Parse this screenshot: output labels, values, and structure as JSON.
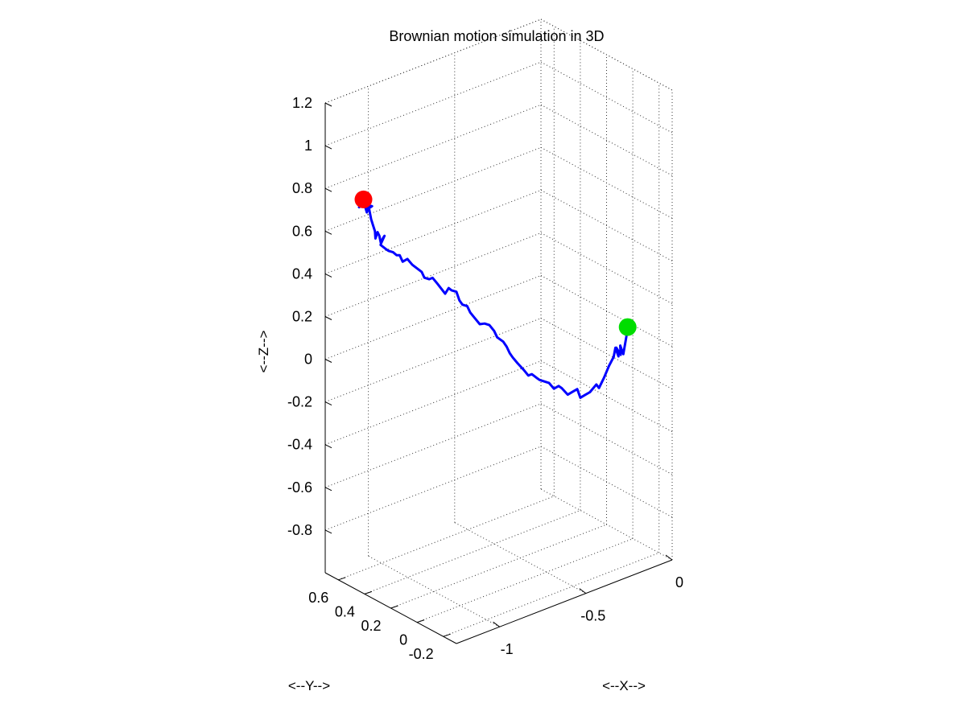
{
  "chart_data": {
    "type": "line3d",
    "title": "Brownian motion simulation in 3D",
    "xlabel": "<--X-->",
    "ylabel": "<--Y-->",
    "zlabel": "<--Z-->",
    "xlim": [
      -1.25,
      0
    ],
    "ylim": [
      -0.3,
      0.7
    ],
    "zlim": [
      -1.0,
      1.2
    ],
    "grid": true,
    "x_ticks": [
      {
        "value": -1,
        "label": "-1"
      },
      {
        "value": -0.5,
        "label": "-0.5"
      },
      {
        "value": 0,
        "label": "0"
      }
    ],
    "y_ticks": [
      {
        "value": -0.2,
        "label": "-0.2"
      },
      {
        "value": 0,
        "label": "0"
      },
      {
        "value": 0.2,
        "label": "0.2"
      },
      {
        "value": 0.4,
        "label": "0.4"
      },
      {
        "value": 0.6,
        "label": "0.6"
      }
    ],
    "z_ticks": [
      {
        "value": -0.8,
        "label": "-0.8"
      },
      {
        "value": -0.6,
        "label": "-0.6"
      },
      {
        "value": -0.4,
        "label": "-0.4"
      },
      {
        "value": -0.2,
        "label": "-0.2"
      },
      {
        "value": 0,
        "label": "0"
      },
      {
        "value": 0.2,
        "label": "0.2"
      },
      {
        "value": 0.4,
        "label": "0.4"
      },
      {
        "value": 0.6,
        "label": "0.6"
      },
      {
        "value": 0.8,
        "label": "0.8"
      },
      {
        "value": 1,
        "label": "1"
      },
      {
        "value": 1.2,
        "label": "1.2"
      }
    ],
    "path_color": "#0000ff",
    "start_marker_color": "#00dd00",
    "end_marker_color": "#ff0000",
    "path": {
      "x": [
        -0.03,
        -0.03,
        -0.04,
        -0.05,
        -0.04,
        -0.05,
        -0.03,
        -0.04,
        -0.05,
        -0.07,
        -0.09,
        -0.12,
        -0.12,
        -0.15,
        -0.17,
        -0.19,
        -0.2,
        -0.22,
        -0.24,
        -0.26,
        -0.27,
        -0.29,
        -0.31,
        -0.33,
        -0.35,
        -0.36,
        -0.38,
        -0.4,
        -0.42,
        -0.44,
        -0.46,
        -0.47,
        -0.48,
        -0.5,
        -0.52,
        -0.53,
        -0.55,
        -0.57,
        -0.59,
        -0.61,
        -0.63,
        -0.64,
        -0.66,
        -0.67,
        -0.68,
        -0.7,
        -0.71,
        -0.73,
        -0.76,
        -0.78,
        -0.8,
        -0.82,
        -0.82,
        -0.84,
        -0.86,
        -0.88,
        -0.9,
        -0.91,
        -0.92,
        -0.94,
        -0.96,
        -0.97,
        -0.99,
        -0.97,
        -0.96,
        -0.98,
        -0.99,
        -1.0,
        -1.02,
        -1.03,
        -1.05,
        -1.06,
        -1.08,
        -1.07,
        -1.09,
        -1.1,
        -1.11,
        -1.13,
        -1.14,
        -1.16,
        -1.14,
        -1.16,
        -1.17,
        -1.15
      ],
      "y": [
        0.0,
        0.01,
        0.02,
        0.03,
        0.04,
        0.06,
        0.07,
        0.08,
        0.08,
        0.09,
        0.1,
        0.1,
        0.12,
        0.13,
        0.14,
        0.15,
        0.16,
        0.17,
        0.18,
        0.2,
        0.21,
        0.22,
        0.23,
        0.24,
        0.25,
        0.26,
        0.27,
        0.27,
        0.28,
        0.3,
        0.31,
        0.32,
        0.33,
        0.33,
        0.35,
        0.36,
        0.37,
        0.38,
        0.39,
        0.4,
        0.41,
        0.42,
        0.43,
        0.44,
        0.45,
        0.46,
        0.47,
        0.47,
        0.49,
        0.5,
        0.5,
        0.51,
        0.53,
        0.54,
        0.55,
        0.56,
        0.57,
        0.58,
        0.59,
        0.59,
        0.6,
        0.61,
        0.62,
        0.63,
        0.63,
        0.63,
        0.63,
        0.63,
        0.62,
        0.61,
        0.6,
        0.6,
        0.59,
        0.58,
        0.58,
        0.58,
        0.58,
        0.57,
        0.57,
        0.56,
        0.55,
        0.54,
        0.54,
        0.54
      ],
      "z": [
        0.0,
        -0.05,
        -0.13,
        -0.09,
        -0.14,
        -0.11,
        -0.16,
        -0.12,
        -0.16,
        -0.2,
        -0.25,
        -0.29,
        -0.28,
        -0.31,
        -0.32,
        -0.33,
        -0.29,
        -0.3,
        -0.31,
        -0.28,
        -0.27,
        -0.28,
        -0.25,
        -0.24,
        -0.23,
        -0.22,
        -0.2,
        -0.2,
        -0.17,
        -0.14,
        -0.11,
        -0.09,
        -0.06,
        -0.03,
        -0.01,
        0.02,
        0.05,
        0.06,
        0.06,
        0.09,
        0.12,
        0.15,
        0.16,
        0.18,
        0.22,
        0.23,
        0.24,
        0.22,
        0.27,
        0.3,
        0.3,
        0.31,
        0.33,
        0.35,
        0.37,
        0.4,
        0.39,
        0.42,
        0.42,
        0.44,
        0.45,
        0.46,
        0.48,
        0.5,
        0.51,
        0.48,
        0.52,
        0.54,
        0.52,
        0.56,
        0.6,
        0.63,
        0.69,
        0.7,
        0.71,
        0.68,
        0.71,
        0.72,
        0.73,
        0.73,
        0.74,
        0.76,
        0.76,
        0.77
      ]
    }
  }
}
